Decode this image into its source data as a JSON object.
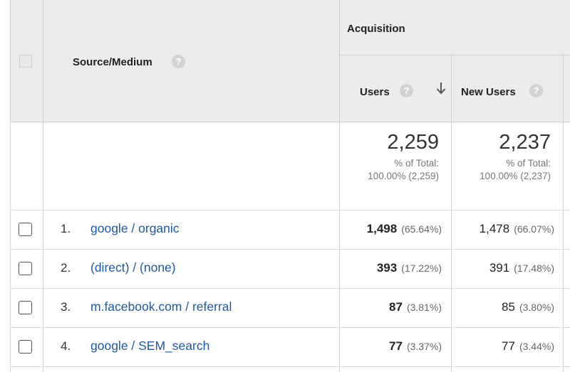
{
  "header": {
    "group_label": "Acquisition",
    "dimension_label": "Source/Medium",
    "help_glyph": "?",
    "columns": [
      {
        "label": "Users",
        "sorted": "descending"
      },
      {
        "label": "New Users"
      }
    ]
  },
  "totals": {
    "users": {
      "value": "2,259",
      "line1": "% of Total:",
      "line2": "100.00% (2,259)"
    },
    "new_users": {
      "value": "2,237",
      "line1": "% of Total:",
      "line2": "100.00% (2,237)"
    }
  },
  "rows": [
    {
      "num": "1.",
      "source": "google / organic",
      "users": "1,498",
      "users_pct": "(65.64%)",
      "new_users": "1,478",
      "new_users_pct": "(66.07%)"
    },
    {
      "num": "2.",
      "source": "(direct) / (none)",
      "users": "393",
      "users_pct": "(17.22%)",
      "new_users": "391",
      "new_users_pct": "(17.48%)"
    },
    {
      "num": "3.",
      "source": "m.facebook.com / referral",
      "users": "87",
      "users_pct": "(3.81%)",
      "new_users": "85",
      "new_users_pct": "(3.80%)"
    },
    {
      "num": "4.",
      "source": "google / SEM_search",
      "users": "77",
      "users_pct": "(3.37%)",
      "new_users": "77",
      "new_users_pct": "(3.44%)"
    }
  ],
  "colors": {
    "header_bg": "#ececec",
    "link": "#1e5aa0",
    "grid": "#cfcfcf"
  },
  "icons": {
    "help": "question-circle-icon",
    "sort": "arrow-down-icon"
  }
}
